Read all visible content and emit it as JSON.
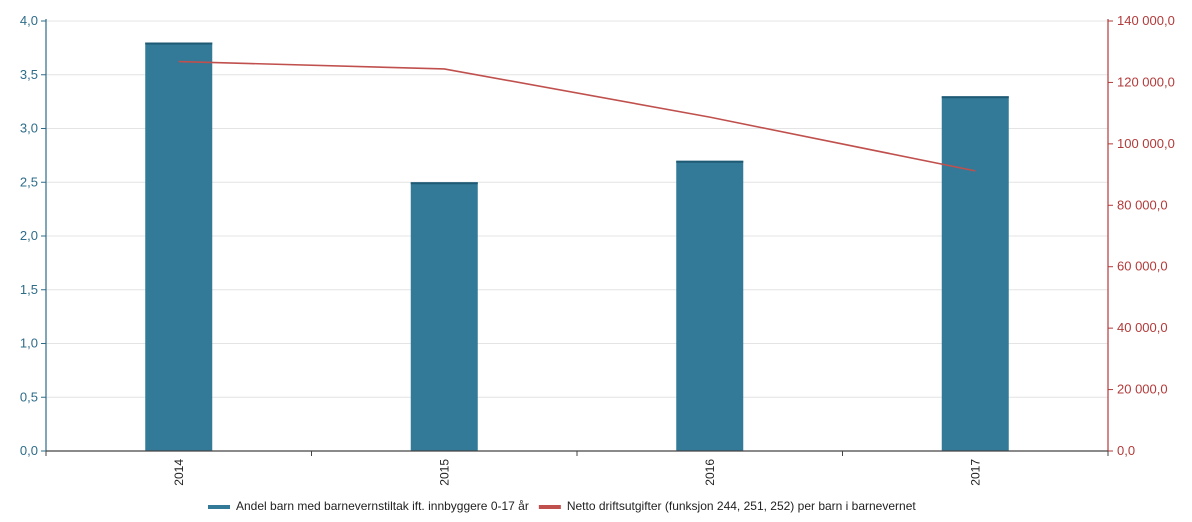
{
  "chart_data": {
    "type": "bar",
    "categories": [
      "2014",
      "2015",
      "2016",
      "2017"
    ],
    "series": [
      {
        "name": "Andel barn med barnevernstiltak ift. innbyggere 0-17 år",
        "type": "bar",
        "axis": "left",
        "color": "#327a98",
        "values": [
          3.8,
          2.5,
          2.7,
          3.3
        ]
      },
      {
        "name": "Netto driftsutgifter (funksjon 244, 251, 252) per barn i barnevernet",
        "type": "line",
        "axis": "right",
        "color": "#c0504d",
        "values": [
          126800,
          124400,
          108700,
          91200
        ]
      }
    ],
    "y_left": {
      "min": 0,
      "max": 4.0,
      "ticks": [
        "0,0",
        "0,5",
        "1,0",
        "1,5",
        "2,0",
        "2,5",
        "3,0",
        "3,5",
        "4,0"
      ],
      "color": "#2e6c8a"
    },
    "y_right": {
      "min": 0,
      "max": 140000,
      "ticks": [
        "0,0",
        "20 000,0",
        "40 000,0",
        "60 000,0",
        "80 000,0",
        "100 000,0",
        "120 000,0",
        "140 000,0"
      ],
      "color": "#b33a3a"
    },
    "grid": true,
    "legend_position": "bottom"
  }
}
